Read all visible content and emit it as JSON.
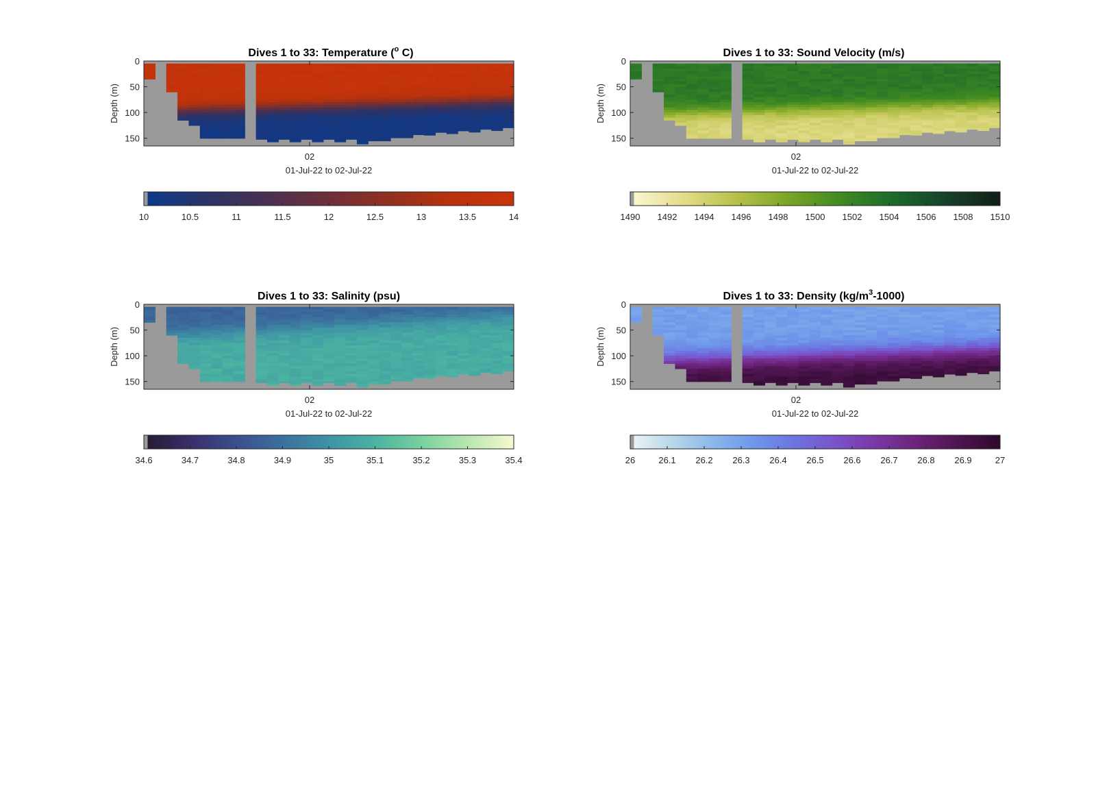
{
  "chart_data": [
    {
      "type": "heatmap",
      "id": "temperature",
      "title_main": "Dives 1 to 33: Temperature (",
      "title_sup": "o",
      "title_end": " C)",
      "ylabel": "Depth (m)",
      "xtick": "02",
      "xlabel": "01-Jul-22 to 02-Jul-22",
      "yticks": [
        "0",
        "50",
        "100",
        "150"
      ],
      "ylim": [
        0,
        165
      ],
      "dives": 33,
      "nodata_color": "#9a9a9a",
      "colorbar_ticks": [
        "10",
        "10.5",
        "11",
        "11.5",
        "12",
        "12.5",
        "13",
        "13.5",
        "14"
      ],
      "clim": [
        10,
        14
      ],
      "colormap": [
        "#0b3a8c",
        "#2a3368",
        "#4a3050",
        "#6e2f3a",
        "#93301f",
        "#b8320c",
        "#c9340a"
      ],
      "profile": {
        "surface": 13.8,
        "deep": 10.2,
        "thermocline_start": 95,
        "thermocline_end": 75,
        "width": 30
      }
    },
    {
      "type": "heatmap",
      "id": "sound_velocity",
      "title_main": "Dives 1 to 33: Sound Velocity (m/s)",
      "ylabel": "Depth (m)",
      "xtick": "02",
      "xlabel": "01-Jul-22 to 02-Jul-22",
      "yticks": [
        "0",
        "50",
        "100",
        "150"
      ],
      "ylim": [
        0,
        165
      ],
      "dives": 33,
      "nodata_color": "#9a9a9a",
      "colorbar_ticks": [
        "1490",
        "1492",
        "1494",
        "1496",
        "1498",
        "1500",
        "1502",
        "1504",
        "1506",
        "1508",
        "1510"
      ],
      "clim": [
        1490,
        1510
      ],
      "colormap": [
        "#fbf8d4",
        "#e4dc8a",
        "#b7c14a",
        "#79a526",
        "#3f8a22",
        "#1b6a2a",
        "#16402b",
        "#121f16"
      ],
      "profile": {
        "surface": 1503,
        "deep": 1493.5,
        "thermocline_start": 100,
        "thermocline_end": 80,
        "width": 35
      }
    },
    {
      "type": "heatmap",
      "id": "salinity",
      "title_main": "Dives 1 to 33: Salinity (psu)",
      "ylabel": "Depth (m)",
      "xtick": "02",
      "xlabel": "01-Jul-22 to 02-Jul-22",
      "yticks": [
        "0",
        "50",
        "100",
        "150"
      ],
      "ylim": [
        0,
        165
      ],
      "dives": 33,
      "nodata_color": "#9a9a9a",
      "colorbar_ticks": [
        "34.6",
        "34.7",
        "34.8",
        "34.9",
        "35",
        "35.1",
        "35.2",
        "35.3",
        "35.4"
      ],
      "clim": [
        34.6,
        35.4
      ],
      "colormap": [
        "#241a2e",
        "#3a2e6a",
        "#3b4f8e",
        "#3b709e",
        "#3f93a5",
        "#4ab3a2",
        "#78d19e",
        "#b9e6b0",
        "#f7f8d0"
      ],
      "profile": {
        "surface": 34.86,
        "deep": 35.08,
        "thermocline_start": 60,
        "thermocline_end": 20,
        "width": 40
      }
    },
    {
      "type": "heatmap",
      "id": "density",
      "title_main": "Dives 1 to 33: Density (kg/m",
      "title_sup": "3",
      "title_end": "-1000)",
      "ylabel": "Depth (m)",
      "xtick": "02",
      "xlabel": "01-Jul-22 to 02-Jul-22",
      "yticks": [
        "0",
        "50",
        "100",
        "150"
      ],
      "ylim": [
        0,
        165
      ],
      "dives": 33,
      "nodata_color": "#9a9a9a",
      "colorbar_ticks": [
        "26",
        "26.1",
        "26.2",
        "26.3",
        "26.4",
        "26.5",
        "26.6",
        "26.7",
        "26.8",
        "26.9",
        "27"
      ],
      "clim": [
        26,
        27
      ],
      "colormap": [
        "#eef5f7",
        "#b8d8ea",
        "#8ab8ea",
        "#6e97ea",
        "#6d74e0",
        "#7a52c8",
        "#7a37a4",
        "#6a2377",
        "#4e1450",
        "#2c0a2a"
      ],
      "profile": {
        "surface": 26.3,
        "deep": 26.95,
        "thermocline_start": 110,
        "thermocline_end": 85,
        "width": 45
      }
    }
  ]
}
